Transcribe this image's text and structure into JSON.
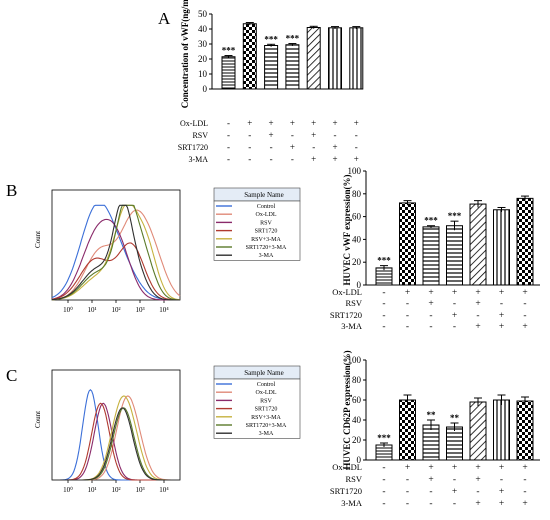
{
  "panels": {
    "a": "A",
    "b": "B",
    "c": "C"
  },
  "conditions": {
    "labels": [
      "Ox-LDL",
      "RSV",
      "SRT1720",
      "3-MA"
    ],
    "signs": [
      [
        "-",
        "+",
        "+",
        "+",
        "+",
        "+",
        "+"
      ],
      [
        "-",
        "-",
        "+",
        "-",
        "+",
        "-",
        "-"
      ],
      [
        "-",
        "-",
        "-",
        "+",
        "-",
        "+",
        "-"
      ],
      [
        "-",
        "-",
        "-",
        "-",
        "+",
        "+",
        "+"
      ]
    ]
  },
  "chart_data": [
    {
      "panel": "A",
      "type": "bar",
      "ylabel": "Concentration of vWF(ng/ml)",
      "ylim": [
        0,
        50
      ],
      "yticks": [
        0,
        10,
        20,
        30,
        40,
        50
      ],
      "values": [
        21.5,
        43.5,
        29.0,
        29.5,
        41.0,
        40.8,
        40.8
      ],
      "errors": [
        0.8,
        0.8,
        0.8,
        0.8,
        0.8,
        0.8,
        0.8
      ],
      "annotations": [
        "***",
        "",
        "***",
        "***",
        "",
        "",
        ""
      ],
      "patterns": [
        "hbar",
        "check",
        "hstripe",
        "hstripe",
        "dstripe",
        "vstripe",
        "vstripe"
      ]
    },
    {
      "panel": "B",
      "type": "bar",
      "ylabel": "HUVEC vWF expression(%)",
      "ylim": [
        0,
        100
      ],
      "yticks": [
        0,
        20,
        40,
        60,
        80,
        100
      ],
      "values": [
        15,
        72,
        51,
        52,
        71,
        66,
        76
      ],
      "errors": [
        2,
        2,
        1,
        4,
        3,
        2,
        2
      ],
      "annotations": [
        "***",
        "",
        "***",
        "***",
        "",
        "",
        ""
      ],
      "patterns": [
        "hbar",
        "check",
        "hstripe",
        "hstripe",
        "dstripe",
        "vstripe",
        "check"
      ]
    },
    {
      "panel": "C",
      "type": "bar",
      "ylabel": "HUVEC CD62P expression(%)",
      "ylim": [
        0,
        100
      ],
      "yticks": [
        0,
        20,
        40,
        60,
        80,
        100
      ],
      "values": [
        15,
        60,
        35,
        33,
        58,
        60,
        59
      ],
      "errors": [
        2,
        5,
        5,
        4,
        4,
        5,
        4
      ],
      "annotations": [
        "***",
        "",
        "**",
        "**",
        "",
        "",
        ""
      ],
      "patterns": [
        "hbar",
        "check",
        "hstripe",
        "hstripe",
        "dstripe",
        "vstripe",
        "check"
      ]
    }
  ],
  "histograms": {
    "xlabel": "",
    "ylabel": "Count",
    "ticks": [
      "10⁰",
      "10¹",
      "10²",
      "10³",
      "10⁴"
    ],
    "legend_header": "Sample Name",
    "legend": [
      {
        "name": "Control",
        "color": "#3b6fd8"
      },
      {
        "name": "Ox-LDL",
        "color": "#e08a78"
      },
      {
        "name": "RSV",
        "color": "#8a2a6a"
      },
      {
        "name": "SRT1720",
        "color": "#b03a30"
      },
      {
        "name": "RSV+3-MA",
        "color": "#c6b240"
      },
      {
        "name": "SRT1720+3-MA",
        "color": "#5a7a2a"
      },
      {
        "name": "3-MA",
        "color": "#303030"
      }
    ]
  }
}
